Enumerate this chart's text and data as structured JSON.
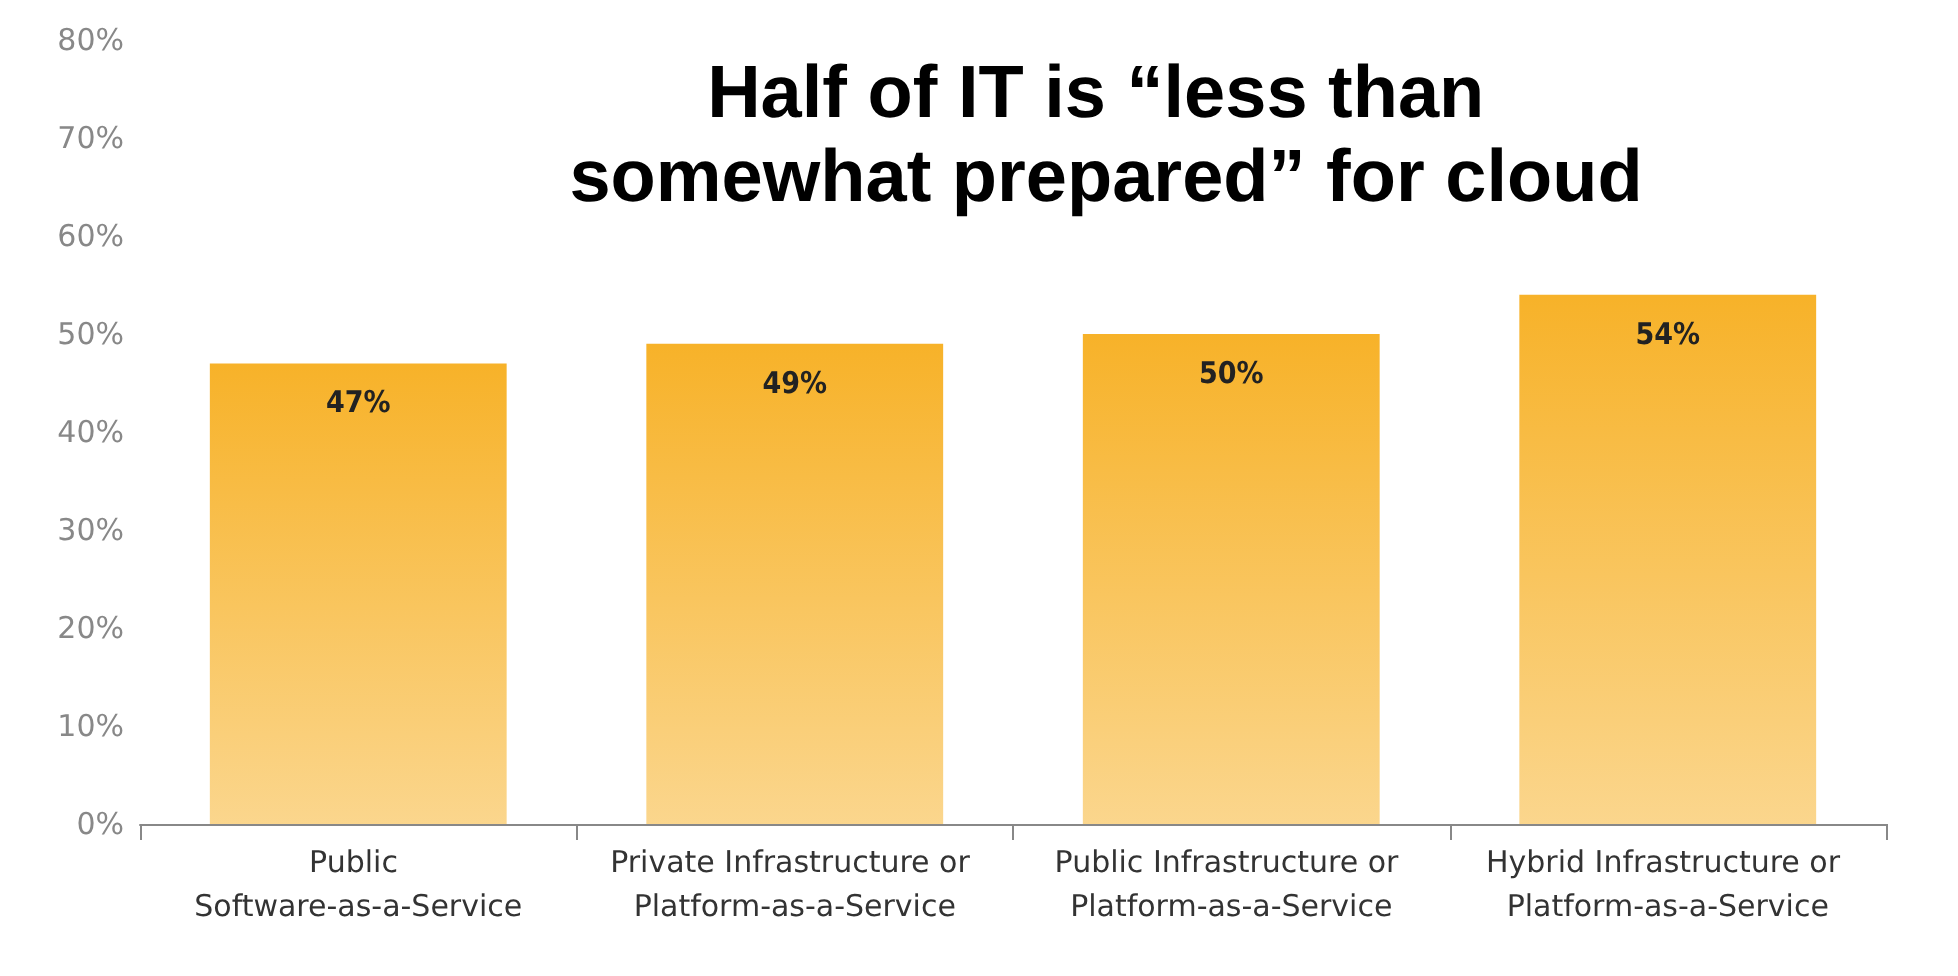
{
  "chart_data": {
    "type": "bar",
    "title": "Half of IT is “less than somewhat prepared” for cloud",
    "categories": [
      "Public Software-as-a-Service",
      "Private Infrastructure or Platform-as-a-Service",
      "Public Infrastructure or Platform-as-a-Service",
      "Hybrid Infrastructure or Platform-as-a-Service"
    ],
    "values": [
      47,
      49,
      50,
      54
    ],
    "color": "#f7b229",
    "ylim": [
      0,
      80
    ],
    "yticks": [
      {
        "value": 0,
        "label": "0%"
      },
      {
        "value": 10,
        "label": "10%"
      },
      {
        "value": 20,
        "label": "20%"
      },
      {
        "value": 30,
        "label": "30%"
      },
      {
        "value": 40,
        "label": "40%"
      },
      {
        "value": 50,
        "label": "50%"
      },
      {
        "value": 60,
        "label": "60%"
      },
      {
        "value": 70,
        "label": "70%"
      },
      {
        "value": 80,
        "label": "80%"
      }
    ],
    "value_labels": [
      "47%",
      "49%",
      "50%",
      "54%"
    ],
    "grid": false
  }
}
